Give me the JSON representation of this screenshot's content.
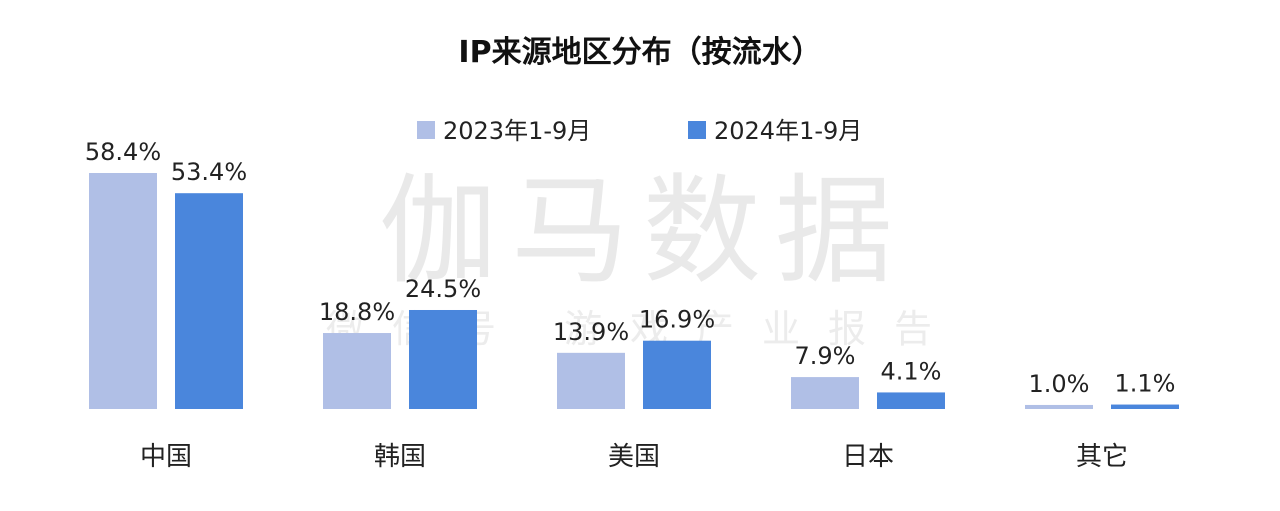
{
  "watermark": {
    "main": "伽马数据",
    "sub": "微信号 游戏产业报告"
  },
  "chart_data": {
    "type": "bar",
    "title": "IP来源地区分布（按流水）",
    "categories": [
      "中国",
      "韩国",
      "美国",
      "日本",
      "其它"
    ],
    "series": [
      {
        "name": "2023年1-9月",
        "values": [
          58.4,
          18.8,
          13.9,
          7.9,
          1.0
        ],
        "labels": [
          "58.4%",
          "18.8%",
          "13.9%",
          "7.9%",
          "1.0%"
        ],
        "color": "#b0bfe6"
      },
      {
        "name": "2024年1-9月",
        "values": [
          53.4,
          24.5,
          16.9,
          4.1,
          1.1
        ],
        "labels": [
          "53.4%",
          "24.5%",
          "16.9%",
          "4.1%",
          "1.1%"
        ],
        "color": "#4a86dc"
      }
    ],
    "xlabel": "",
    "ylabel": "",
    "ylim": [
      0,
      60
    ],
    "unit": "%",
    "grid": false,
    "legend_position": "top-center"
  }
}
